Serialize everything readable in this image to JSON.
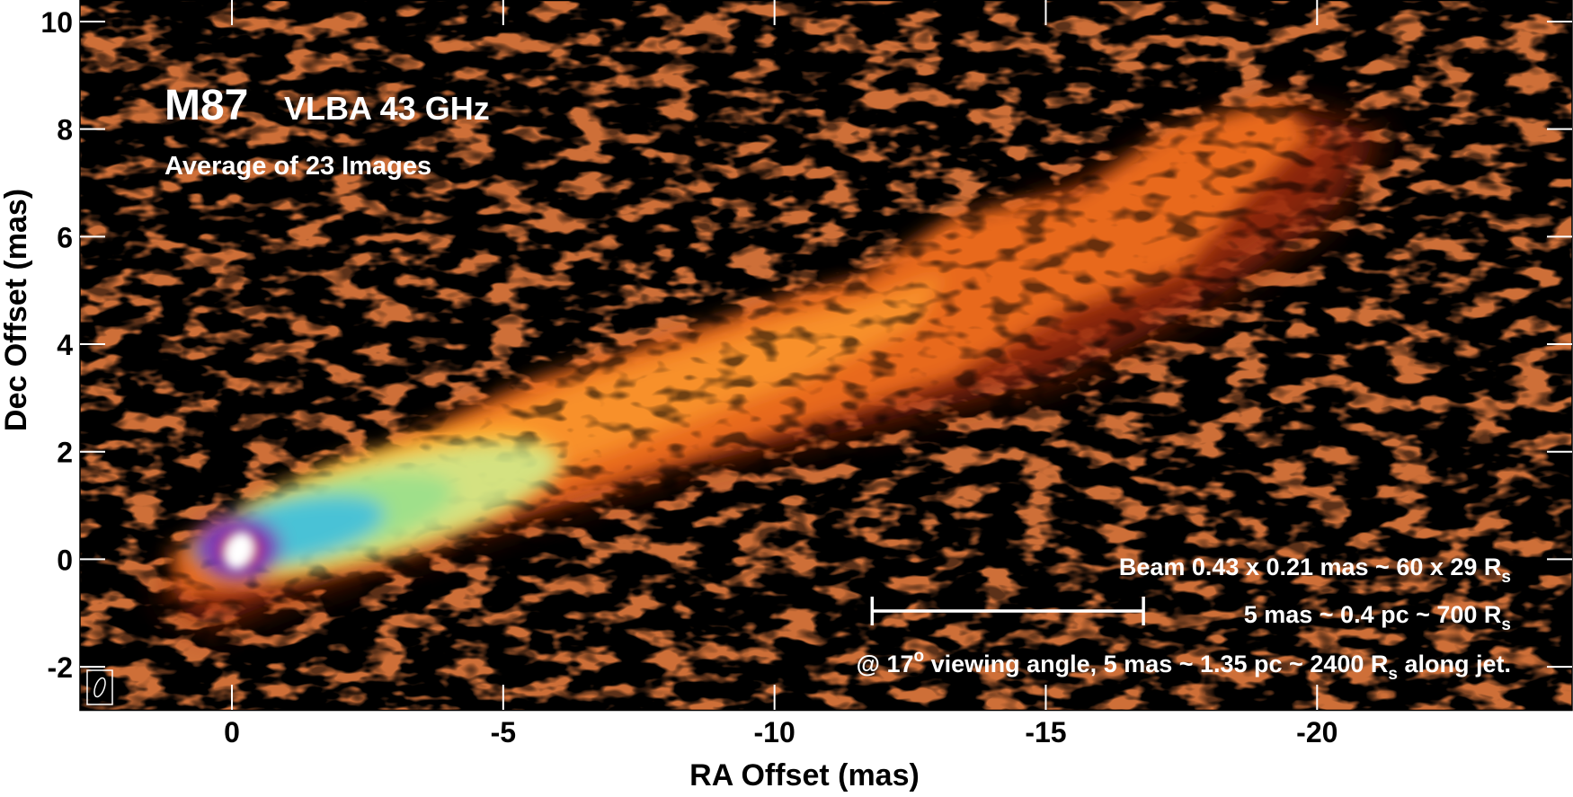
{
  "title": {
    "main": "M87",
    "sub": "VLBA  43 GHz",
    "caption": "Average of 23 Images"
  },
  "axes": {
    "xlabel": "RA Offset (mas)",
    "ylabel": "Dec Offset (mas)",
    "xticks": [
      {
        "value": 0,
        "label": "0"
      },
      {
        "value": -5,
        "label": "-5"
      },
      {
        "value": -10,
        "label": "-10"
      },
      {
        "value": -15,
        "label": "-15"
      },
      {
        "value": -20,
        "label": "-20"
      }
    ],
    "yticks": [
      {
        "value": 10,
        "label": "10"
      },
      {
        "value": 8,
        "label": "8"
      },
      {
        "value": 6,
        "label": "6"
      },
      {
        "value": 4,
        "label": "4"
      },
      {
        "value": 2,
        "label": "2"
      },
      {
        "value": 0,
        "label": "0"
      },
      {
        "value": -2,
        "label": "-2"
      }
    ],
    "xlim": [
      2.8,
      -24.7
    ],
    "ylim": [
      -2.8,
      10.4
    ]
  },
  "annotations": {
    "beam": {
      "prefix": "Beam 0.43 x 0.21 mas ~ 60 x 29 R",
      "sub": "s"
    },
    "scale": {
      "prefix": "5 mas ~ 0.4 pc ~ 700 R",
      "sub": "s"
    },
    "angle": {
      "prefix": "@ 17",
      "sup": "o",
      "mid": " viewing angle, 5 mas ~ 1.35 pc ~ 2400 R",
      "sub": "s",
      "suffix": " along jet."
    }
  },
  "scale_bar": {
    "from": -11.8,
    "to": -16.8,
    "length_mas": 5
  },
  "colors": {
    "background": "#000000",
    "faint": "#a52a0a",
    "jet_orange": "#f07a18",
    "jet_bright": "#ffa12a",
    "core_cyan": "#49c2d6",
    "core_green": "#9fe08a",
    "core_purple": "#7a3ab8",
    "core_white": "#ffffff"
  }
}
